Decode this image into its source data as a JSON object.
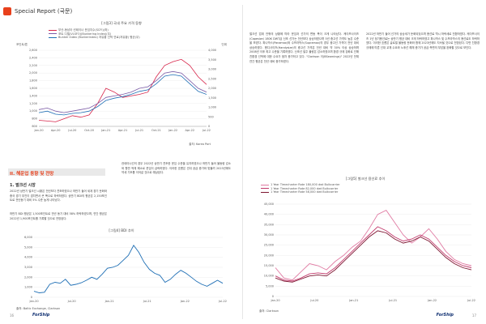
{
  "header": {
    "title": "Special Report (국문)"
  },
  "footer": {
    "left_page": "16",
    "right_page": "17",
    "brand": "ForShip"
  },
  "left_chart": {
    "title": "[그림3] 국내 주요 가격 동향",
    "y_label": "포인트/톤",
    "unit": "단위",
    "legend": [
      "부산-동남아 컨테이너 운임지수(SCFI)(좌)",
      "포트 디젤(VLSFO)(Bunkering Index)(우)",
      "Bunker Index (Bunkerindex) 저유황 선박 연료(저유황) 평균(우)"
    ],
    "source": "출처: Korea Port",
    "x_labels": [
      "Jan-20",
      "Apr-20",
      "Jul-20",
      "Oct-20",
      "Jan-21",
      "Apr-21",
      "Jul-21",
      "Oct-21",
      "Jan-22",
      "Apr-22",
      "Jul-22"
    ],
    "y_left": [
      "2,600",
      "2,400",
      "2,200",
      "2,000",
      "1,800",
      "1,600",
      "1,400",
      "1,200",
      "1,000",
      "800",
      "600"
    ],
    "y_right": [
      "4,000",
      "3,500",
      "3,000",
      "2,500",
      "2,000",
      "1,500",
      "1,000",
      "500",
      "0"
    ],
    "colors": [
      "#d7254a",
      "#7b5ba6",
      "#1f6fb5"
    ]
  },
  "section": {
    "title": "II. 해운업 동향 및 전망",
    "subtitle": "1. 벌크선 시장",
    "para1": "2022년 상반기 벌크선 시황은 전년보다 견조하였으나 하반기 들어 세계 경기 둔화와 중국 경기 부진이 겹치면서 큰 폭으로 하락하였다. 상반기 BDI의 평균은 2,150포인트로 전년동기 대비 5% 수준 높게 나타났다.",
    "para2": "하반기 BDI 평균은 1,500포인트로 전년 동기 대비 58% 하락하였으며, 연간 평균은 2022년 1,900포인트를 기록할 것으로 전망된다.",
    "para3": "컨테이너선의 경우 2022년 상반기 견조한 운임 수준을 유지하였으나 하반기 들어 물동량 감소와 항만 적체 해소로 운임이 급락하였다. 이러한 흐름은 선대 공급 증가와 맞물려 2023년에도 약세 기조를 이어갈 것으로 예상된다."
  },
  "bottom_left_chart": {
    "title": "[그림4] BDI 추이",
    "y_labels": [
      "6,000",
      "5,000",
      "4,000",
      "3,000",
      "2,000",
      "1,000",
      "0"
    ],
    "x_labels": [
      "Jan-20",
      "Jul-20",
      "Jan-21",
      "Jul-21",
      "Jan-22",
      "Jul-22"
    ],
    "source": "출처: Baltic Exchange, Clarkson",
    "color": "#1f6fb5",
    "values": [
      600,
      450,
      500,
      1300,
      1500,
      1400,
      1800,
      1200,
      1300,
      1450,
      1700,
      2000,
      1800,
      2300,
      2900,
      3000,
      3200,
      3700,
      4200,
      5200,
      4500,
      3500,
      2800,
      2400,
      2200,
      1500,
      1800,
      2300,
      2700,
      2400,
      2000,
      1600,
      1300,
      1100,
      1400,
      1700,
      1400
    ]
  },
  "right_top_text": {
    "col1": "벌크선 업계 안팎의 상황에 따라 운임과 선가의 변동 폭이 크게 나타났다. 케이프사이즈(Capesize) 180K DWT급 신조 선가는 전년보다 상승하였으며 5년 중고선 가격도 높은 수준을 보였다. 파나막스(Panamax)와 수프라막스(Supramax)의 경우 중고선 가격이 전년 대비 상승하였다. 핸디사이즈(Handysize)의 중고선 가격은 전년 대비 약 30% 이상 상승하며 2008년 이후 최고 수준을 기록하였다. 신조선 발주 물량은 감소하였으며 환경 규제 강화로 인해 친환경 선박에 대한 수요가 점차 증가하고 있다. \"Clarkson 이(BSearnings)\" 2022년 전체 연간 평균은 전년 대비 증가하였다.",
    "col2": "2022년 하반기 들어 선가의 상승세가 둔화되었으며 용선료 역시 하락세로 전환하였다. 케이프사이즈 1년 정기용선료는 상반기 평균 대비 크게 하락하였고 파나막스 및 수프라막스의 용선료도 하락하였다. 이러한 흐름은 글로벌 물동량 둔화와 함께 2023년에도 지속될 것으로 전망된다. 다만 친환경 규제에 따른 선대 교체 수요와 노후선 해체 증가가 공급 측면의 부담을 완화할 것으로 보인다."
  },
  "right_chart": {
    "title": "[그림5] 벌크선 용선료 추이",
    "legend": [
      "1 Year Timecharter Rate 180,000 dwt Bulkcarrier",
      "1 Year Timecharter Rate 82,000 dwt Bulkcarrier",
      "1 Year Timecharter Rate 58,000 dwt Bulkcarrier"
    ],
    "y_labels": [
      "45,000",
      "40,000",
      "35,000",
      "30,000",
      "25,000",
      "20,000",
      "15,000",
      "10,000",
      "5,000",
      "0"
    ],
    "x_labels": [
      "Jan-20",
      "Jul-20",
      "Jan-21",
      "Jul-21",
      "Jan-22",
      "Jul-22"
    ],
    "source": "출처: Clarkson",
    "colors": [
      "#e07ba3",
      "#c23a6c",
      "#7d1530"
    ],
    "series": [
      [
        14000,
        9000,
        8000,
        12000,
        16000,
        15000,
        13000,
        17000,
        20000,
        24000,
        27000,
        33000,
        40000,
        42000,
        36000,
        30000,
        26000,
        29000,
        33000,
        28000,
        22000,
        18000,
        16000,
        15000
      ],
      [
        10000,
        8000,
        7500,
        9000,
        11000,
        11500,
        11000,
        14000,
        18000,
        22000,
        26000,
        30000,
        34000,
        32000,
        29000,
        27000,
        28000,
        30000,
        28000,
        24000,
        20000,
        17000,
        15000,
        14000
      ],
      [
        9000,
        7500,
        7000,
        8500,
        10000,
        10500,
        10000,
        13000,
        17000,
        21000,
        25000,
        29000,
        32000,
        31000,
        28000,
        26000,
        27000,
        29000,
        27000,
        23000,
        19000,
        16000,
        14000,
        13000
      ]
    ]
  }
}
